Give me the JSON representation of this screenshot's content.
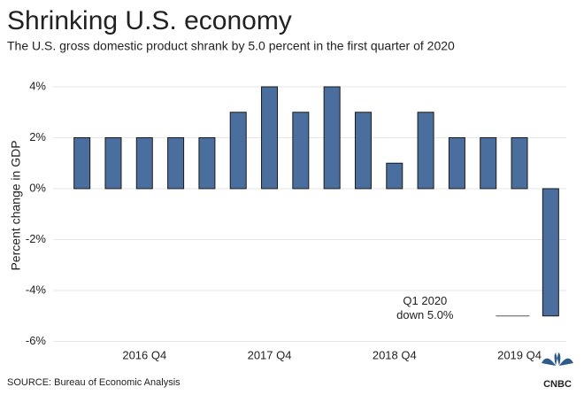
{
  "chart_data": {
    "type": "bar",
    "title": "Shrinking U.S. economy",
    "subtitle": "The U.S. gross domestic product shrank by 5.0 percent in the first quarter of 2020",
    "y_axis_label": "Percent change in GDP",
    "categories": [
      null,
      null,
      "2016 Q4",
      null,
      null,
      null,
      "2017 Q4",
      null,
      null,
      null,
      "2018 Q4",
      null,
      null,
      null,
      "2019 Q4",
      null
    ],
    "values": [
      2,
      2,
      2,
      2,
      2,
      3,
      4,
      3,
      4,
      3,
      1,
      3,
      2,
      2,
      2,
      -5.0
    ],
    "color": "#4a6f9e",
    "ylim": [
      -6,
      4.6
    ],
    "yticks": [
      {
        "value": 4,
        "label": "4%"
      },
      {
        "value": 2,
        "label": "2%"
      },
      {
        "value": 0,
        "label": "0%"
      },
      {
        "value": -2,
        "label": "-2%"
      },
      {
        "value": -4,
        "label": "-4%"
      },
      {
        "value": -6,
        "label": "-6%"
      }
    ],
    "grid": true,
    "annotation": [
      "Q1 2020",
      "down 5.0%"
    ],
    "source": "SOURCE: Bureau of Economic Analysis",
    "logo": "CNBC"
  }
}
